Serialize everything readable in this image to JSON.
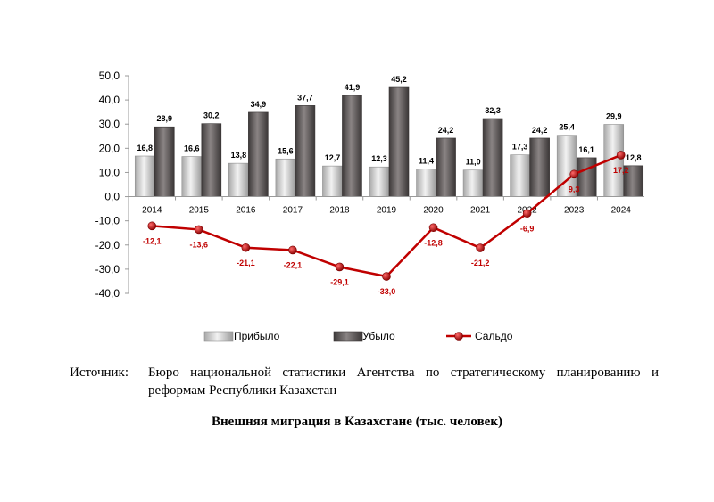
{
  "chart_data": {
    "type": "bar",
    "categories": [
      "2014",
      "2015",
      "2016",
      "2017",
      "2018",
      "2019",
      "2020",
      "2021",
      "2022",
      "2023",
      "2024"
    ],
    "series": [
      {
        "name": "Прибыло",
        "type": "bar",
        "values": [
          16.8,
          16.6,
          13.8,
          15.6,
          12.7,
          12.3,
          11.4,
          11.0,
          17.3,
          25.4,
          29.9
        ],
        "labels": [
          "16,8",
          "16,6",
          "13,8",
          "15,6",
          "12,7",
          "12,3",
          "11,4",
          "11,0",
          "17,3",
          "25,4",
          "29,9"
        ],
        "color": "#d0d0d0"
      },
      {
        "name": "Убыло",
        "type": "bar",
        "values": [
          28.9,
          30.2,
          34.9,
          37.7,
          41.9,
          45.2,
          24.2,
          32.3,
          24.2,
          16.1,
          12.8
        ],
        "labels": [
          "28,9",
          "30,2",
          "34,9",
          "37,7",
          "41,9",
          "45,2",
          "24,2",
          "32,3",
          "24,2",
          "16,1",
          "12,8"
        ],
        "color": "#5f5a5a"
      },
      {
        "name": "Сальдо",
        "type": "line",
        "values": [
          -12.1,
          -13.6,
          -21.1,
          -22.1,
          -29.1,
          -33.0,
          -12.8,
          -21.2,
          -6.9,
          9.3,
          17.2
        ],
        "labels": [
          "-12,1",
          "-13,6",
          "-21,1",
          "-22,1",
          "-29,1",
          "-33,0",
          "-12,8",
          "-21,2",
          "-6,9",
          "9,3",
          "17,2"
        ],
        "color": "#c00000"
      }
    ],
    "ylim": [
      -40,
      50
    ],
    "yticks": [
      "50,0",
      "40,0",
      "30,0",
      "20,0",
      "10,0",
      "0,0",
      "-10,0",
      "-20,0",
      "-30,0",
      "-40,0"
    ],
    "ytick_values": [
      50,
      40,
      30,
      20,
      10,
      0,
      -10,
      -20,
      -30,
      -40
    ],
    "grid": false,
    "legend": "bottom",
    "legend_labels": [
      "Прибыло",
      "Убыло",
      "Сальдо"
    ]
  },
  "source": {
    "label": "Источник:",
    "text": "Бюро национальной статистики Агентства по стратегическому планированию и реформам Республики Казахстан"
  },
  "caption": "Внешняя миграция в Казахстане (тыс. человек)"
}
